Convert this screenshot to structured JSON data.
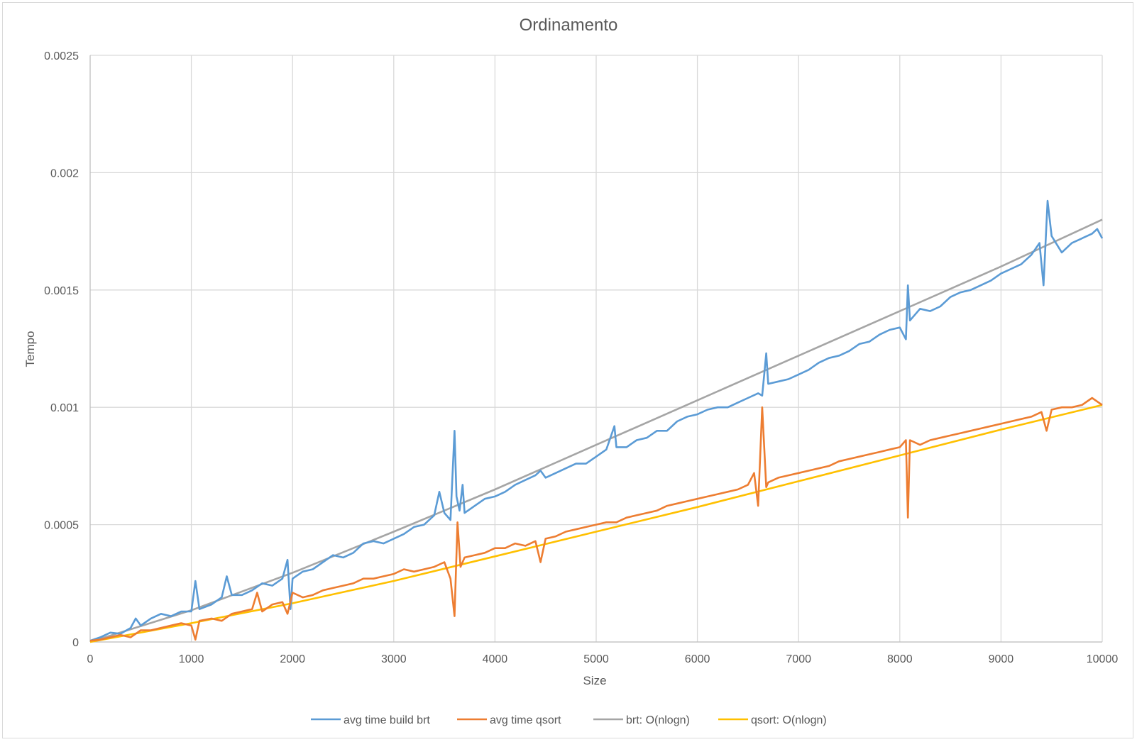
{
  "chart_data": {
    "type": "line",
    "title": "Ordinamento",
    "xlabel": "Size",
    "ylabel": "Tempo",
    "xlim": [
      0,
      10000
    ],
    "ylim": [
      0,
      0.0025
    ],
    "x_ticks": [
      0,
      1000,
      2000,
      3000,
      4000,
      5000,
      6000,
      7000,
      8000,
      9000,
      10000
    ],
    "x_tick_labels": [
      "0",
      "1000",
      "2000",
      "3000",
      "4000",
      "5000",
      "6000",
      "7000",
      "8000",
      "9000",
      "10000"
    ],
    "y_ticks": [
      0,
      0.0005,
      0.001,
      0.0015,
      0.002,
      0.0025
    ],
    "y_tick_labels": [
      "0",
      "0.0005",
      "0.001",
      "0.0015",
      "0.002",
      "0.0025"
    ],
    "grid": true,
    "legend_position": "bottom",
    "series": [
      {
        "name": "avg time build brt",
        "color": "#5b9bd5",
        "points": [
          [
            0,
            5e-06
          ],
          [
            100,
            2e-05
          ],
          [
            200,
            4e-05
          ],
          [
            300,
            3.5e-05
          ],
          [
            400,
            6e-05
          ],
          [
            450,
            0.0001
          ],
          [
            500,
            7e-05
          ],
          [
            600,
            0.0001
          ],
          [
            700,
            0.00012
          ],
          [
            800,
            0.00011
          ],
          [
            900,
            0.00013
          ],
          [
            1000,
            0.00013
          ],
          [
            1040,
            0.00026
          ],
          [
            1080,
            0.00014
          ],
          [
            1200,
            0.00016
          ],
          [
            1300,
            0.00019
          ],
          [
            1350,
            0.00028
          ],
          [
            1400,
            0.0002
          ],
          [
            1500,
            0.0002
          ],
          [
            1600,
            0.00022
          ],
          [
            1700,
            0.00025
          ],
          [
            1800,
            0.00024
          ],
          [
            1900,
            0.00027
          ],
          [
            1950,
            0.00035
          ],
          [
            1980,
            0.00014
          ],
          [
            2000,
            0.00027
          ],
          [
            2100,
            0.0003
          ],
          [
            2200,
            0.00031
          ],
          [
            2300,
            0.00034
          ],
          [
            2400,
            0.00037
          ],
          [
            2500,
            0.00036
          ],
          [
            2600,
            0.00038
          ],
          [
            2700,
            0.00042
          ],
          [
            2800,
            0.00043
          ],
          [
            2900,
            0.00042
          ],
          [
            3000,
            0.00044
          ],
          [
            3100,
            0.00046
          ],
          [
            3200,
            0.00049
          ],
          [
            3300,
            0.0005
          ],
          [
            3400,
            0.00054
          ],
          [
            3450,
            0.00064
          ],
          [
            3500,
            0.00055
          ],
          [
            3560,
            0.00052
          ],
          [
            3600,
            0.0009
          ],
          [
            3620,
            0.00062
          ],
          [
            3650,
            0.00056
          ],
          [
            3680,
            0.00067
          ],
          [
            3700,
            0.00055
          ],
          [
            3800,
            0.00058
          ],
          [
            3900,
            0.00061
          ],
          [
            4000,
            0.00062
          ],
          [
            4100,
            0.00064
          ],
          [
            4200,
            0.00067
          ],
          [
            4300,
            0.00069
          ],
          [
            4400,
            0.00071
          ],
          [
            4450,
            0.00073
          ],
          [
            4500,
            0.0007
          ],
          [
            4600,
            0.00072
          ],
          [
            4700,
            0.00074
          ],
          [
            4800,
            0.00076
          ],
          [
            4900,
            0.00076
          ],
          [
            5000,
            0.00079
          ],
          [
            5100,
            0.00082
          ],
          [
            5180,
            0.00092
          ],
          [
            5200,
            0.00083
          ],
          [
            5300,
            0.00083
          ],
          [
            5400,
            0.00086
          ],
          [
            5500,
            0.00087
          ],
          [
            5600,
            0.0009
          ],
          [
            5700,
            0.0009
          ],
          [
            5800,
            0.00094
          ],
          [
            5900,
            0.00096
          ],
          [
            6000,
            0.00097
          ],
          [
            6100,
            0.00099
          ],
          [
            6200,
            0.001
          ],
          [
            6300,
            0.001
          ],
          [
            6400,
            0.00102
          ],
          [
            6500,
            0.00104
          ],
          [
            6600,
            0.00106
          ],
          [
            6640,
            0.00105
          ],
          [
            6680,
            0.00123
          ],
          [
            6700,
            0.0011
          ],
          [
            6800,
            0.00111
          ],
          [
            6900,
            0.00112
          ],
          [
            7000,
            0.00114
          ],
          [
            7100,
            0.00116
          ],
          [
            7200,
            0.00119
          ],
          [
            7300,
            0.00121
          ],
          [
            7400,
            0.00122
          ],
          [
            7500,
            0.00124
          ],
          [
            7600,
            0.00127
          ],
          [
            7700,
            0.00128
          ],
          [
            7800,
            0.00131
          ],
          [
            7900,
            0.00133
          ],
          [
            8000,
            0.00134
          ],
          [
            8060,
            0.00129
          ],
          [
            8080,
            0.00152
          ],
          [
            8100,
            0.00137
          ],
          [
            8200,
            0.00142
          ],
          [
            8300,
            0.00141
          ],
          [
            8400,
            0.00143
          ],
          [
            8500,
            0.00147
          ],
          [
            8600,
            0.00149
          ],
          [
            8700,
            0.0015
          ],
          [
            8800,
            0.00152
          ],
          [
            8900,
            0.00154
          ],
          [
            9000,
            0.00157
          ],
          [
            9100,
            0.00159
          ],
          [
            9200,
            0.00161
          ],
          [
            9300,
            0.00165
          ],
          [
            9380,
            0.0017
          ],
          [
            9420,
            0.00152
          ],
          [
            9460,
            0.00188
          ],
          [
            9500,
            0.00173
          ],
          [
            9600,
            0.00166
          ],
          [
            9700,
            0.0017
          ],
          [
            9800,
            0.00172
          ],
          [
            9900,
            0.00174
          ],
          [
            9950,
            0.00176
          ],
          [
            10000,
            0.00172
          ]
        ]
      },
      {
        "name": "avg time qsort",
        "color": "#ed7d31",
        "points": [
          [
            0,
            5e-06
          ],
          [
            100,
            1e-05
          ],
          [
            200,
            2e-05
          ],
          [
            300,
            3e-05
          ],
          [
            400,
            2e-05
          ],
          [
            500,
            5e-05
          ],
          [
            600,
            5e-05
          ],
          [
            700,
            6e-05
          ],
          [
            800,
            7e-05
          ],
          [
            900,
            8e-05
          ],
          [
            1000,
            7e-05
          ],
          [
            1040,
            1e-05
          ],
          [
            1080,
            9e-05
          ],
          [
            1200,
            0.0001
          ],
          [
            1300,
            9e-05
          ],
          [
            1400,
            0.00012
          ],
          [
            1500,
            0.00013
          ],
          [
            1600,
            0.00014
          ],
          [
            1650,
            0.00021
          ],
          [
            1700,
            0.00013
          ],
          [
            1800,
            0.00016
          ],
          [
            1900,
            0.00017
          ],
          [
            1950,
            0.00012
          ],
          [
            2000,
            0.00021
          ],
          [
            2100,
            0.00019
          ],
          [
            2200,
            0.0002
          ],
          [
            2300,
            0.00022
          ],
          [
            2400,
            0.00023
          ],
          [
            2500,
            0.00024
          ],
          [
            2600,
            0.00025
          ],
          [
            2700,
            0.00027
          ],
          [
            2800,
            0.00027
          ],
          [
            2900,
            0.00028
          ],
          [
            3000,
            0.00029
          ],
          [
            3100,
            0.00031
          ],
          [
            3200,
            0.0003
          ],
          [
            3300,
            0.00031
          ],
          [
            3400,
            0.00032
          ],
          [
            3500,
            0.00034
          ],
          [
            3560,
            0.00027
          ],
          [
            3600,
            0.00011
          ],
          [
            3630,
            0.00051
          ],
          [
            3660,
            0.00032
          ],
          [
            3700,
            0.00036
          ],
          [
            3800,
            0.00037
          ],
          [
            3900,
            0.00038
          ],
          [
            4000,
            0.0004
          ],
          [
            4100,
            0.0004
          ],
          [
            4200,
            0.00042
          ],
          [
            4300,
            0.00041
          ],
          [
            4400,
            0.00043
          ],
          [
            4450,
            0.00034
          ],
          [
            4500,
            0.00044
          ],
          [
            4600,
            0.00045
          ],
          [
            4700,
            0.00047
          ],
          [
            4800,
            0.00048
          ],
          [
            4900,
            0.00049
          ],
          [
            5000,
            0.0005
          ],
          [
            5100,
            0.00051
          ],
          [
            5200,
            0.00051
          ],
          [
            5300,
            0.00053
          ],
          [
            5400,
            0.00054
          ],
          [
            5500,
            0.00055
          ],
          [
            5600,
            0.00056
          ],
          [
            5700,
            0.00058
          ],
          [
            5800,
            0.00059
          ],
          [
            5900,
            0.0006
          ],
          [
            6000,
            0.00061
          ],
          [
            6100,
            0.00062
          ],
          [
            6200,
            0.00063
          ],
          [
            6300,
            0.00064
          ],
          [
            6400,
            0.00065
          ],
          [
            6500,
            0.00067
          ],
          [
            6560,
            0.00072
          ],
          [
            6600,
            0.00058
          ],
          [
            6640,
            0.001
          ],
          [
            6680,
            0.00066
          ],
          [
            6700,
            0.00068
          ],
          [
            6800,
            0.0007
          ],
          [
            6900,
            0.00071
          ],
          [
            7000,
            0.00072
          ],
          [
            7100,
            0.00073
          ],
          [
            7200,
            0.00074
          ],
          [
            7300,
            0.00075
          ],
          [
            7400,
            0.00077
          ],
          [
            7500,
            0.00078
          ],
          [
            7600,
            0.00079
          ],
          [
            7700,
            0.0008
          ],
          [
            7800,
            0.00081
          ],
          [
            7900,
            0.00082
          ],
          [
            8000,
            0.00083
          ],
          [
            8060,
            0.00086
          ],
          [
            8080,
            0.00053
          ],
          [
            8100,
            0.00086
          ],
          [
            8200,
            0.00084
          ],
          [
            8300,
            0.00086
          ],
          [
            8400,
            0.00087
          ],
          [
            8500,
            0.00088
          ],
          [
            8600,
            0.00089
          ],
          [
            8700,
            0.0009
          ],
          [
            8800,
            0.00091
          ],
          [
            8900,
            0.00092
          ],
          [
            9000,
            0.00093
          ],
          [
            9100,
            0.00094
          ],
          [
            9200,
            0.00095
          ],
          [
            9300,
            0.00096
          ],
          [
            9400,
            0.00098
          ],
          [
            9450,
            0.0009
          ],
          [
            9500,
            0.00099
          ],
          [
            9600,
            0.001
          ],
          [
            9700,
            0.001
          ],
          [
            9800,
            0.00101
          ],
          [
            9900,
            0.00104
          ],
          [
            10000,
            0.00101
          ]
        ]
      },
      {
        "name": "brt: O(nlogn)",
        "color": "#a5a5a5",
        "points": [
          [
            0,
            0
          ],
          [
            1000,
            0.000135
          ],
          [
            2000,
            0.000295
          ],
          [
            3000,
            0.00047
          ],
          [
            4000,
            0.00065
          ],
          [
            5000,
            0.00084
          ],
          [
            6000,
            0.00103
          ],
          [
            7000,
            0.00122
          ],
          [
            8000,
            0.00141
          ],
          [
            9000,
            0.0016
          ],
          [
            10000,
            0.0018
          ]
        ]
      },
      {
        "name": "qsort: O(nlogn)",
        "color": "#ffc000",
        "points": [
          [
            0,
            0
          ],
          [
            1000,
            8e-05
          ],
          [
            2000,
            0.000165
          ],
          [
            3000,
            0.00026
          ],
          [
            4000,
            0.000365
          ],
          [
            5000,
            0.00047
          ],
          [
            6000,
            0.000575
          ],
          [
            7000,
            0.000685
          ],
          [
            8000,
            0.000795
          ],
          [
            9000,
            0.000905
          ],
          [
            10000,
            0.00101
          ]
        ]
      }
    ]
  }
}
